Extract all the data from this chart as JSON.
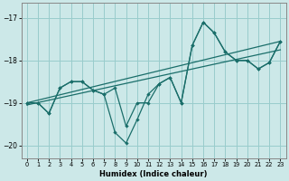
{
  "xlabel": "Humidex (Indice chaleur)",
  "background_color": "#cce8e8",
  "grid_color": "#99cccc",
  "line_color": "#1a6e6a",
  "xlim": [
    -0.5,
    23.5
  ],
  "ylim": [
    -20.3,
    -16.65
  ],
  "yticks": [
    -20,
    -19,
    -18,
    -17
  ],
  "xticks": [
    0,
    1,
    2,
    3,
    4,
    5,
    6,
    7,
    8,
    9,
    10,
    11,
    12,
    13,
    14,
    15,
    16,
    17,
    18,
    19,
    20,
    21,
    22,
    23
  ],
  "line1_x": [
    0,
    1,
    2,
    3,
    4,
    5,
    6,
    7,
    8,
    9,
    10,
    11,
    12,
    13,
    14,
    15,
    16,
    17,
    18,
    19,
    20,
    21,
    22,
    23
  ],
  "line1_y": [
    -19.0,
    -19.0,
    -19.25,
    -18.65,
    -18.5,
    -18.5,
    -18.7,
    -18.8,
    -18.65,
    -19.55,
    -19.0,
    -19.0,
    -18.55,
    -18.4,
    -19.0,
    -17.65,
    -17.1,
    -17.35,
    -17.8,
    -18.0,
    -18.0,
    -18.2,
    -18.05,
    -17.55
  ],
  "line2_x": [
    0,
    1,
    2,
    3,
    4,
    5,
    6,
    7,
    8,
    9,
    10,
    11,
    12,
    13,
    14,
    15,
    16,
    17,
    18,
    19,
    20,
    21,
    22,
    23
  ],
  "line2_y": [
    -19.0,
    -19.0,
    -19.25,
    -18.65,
    -18.5,
    -18.5,
    -18.7,
    -18.8,
    -19.7,
    -19.95,
    -19.4,
    -18.8,
    -18.55,
    -18.4,
    -19.0,
    -17.65,
    -17.1,
    -17.35,
    -17.8,
    -18.0,
    -18.0,
    -18.2,
    -18.05,
    -17.55
  ],
  "line3_x": [
    0,
    23
  ],
  "line3_y": [
    -19.0,
    -17.55
  ],
  "line4_x": [
    0,
    23
  ],
  "line4_y": [
    -19.05,
    -17.75
  ]
}
